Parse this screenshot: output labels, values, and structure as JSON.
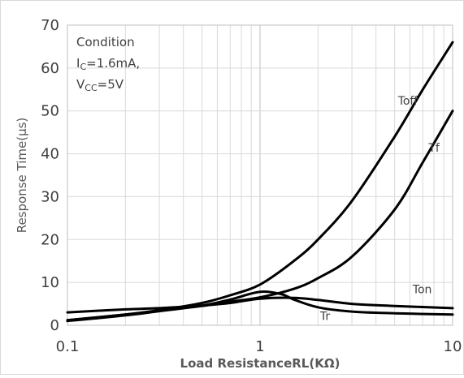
{
  "chart_data": {
    "type": "line",
    "xlabel": "Load ResistanceRL(KΩ)",
    "ylabel": "Response Time(μs)",
    "xscale": "log",
    "xlim": [
      0.1,
      10
    ],
    "ylim": [
      0,
      70
    ],
    "grid": true,
    "x_ticks": [
      "0.1",
      "1",
      "10"
    ],
    "y_ticks": [
      "0",
      "10",
      "20",
      "30",
      "40",
      "50",
      "60",
      "70"
    ],
    "annotation": {
      "title": "Condition",
      "lines": [
        {
          "main": "I",
          "sub": "C",
          "rest": "=1.6mA,"
        },
        {
          "main": "V",
          "sub": "CC",
          "rest": "=5V"
        }
      ]
    },
    "series": [
      {
        "name": "Toff",
        "x": [
          0.1,
          0.2,
          0.3,
          0.5,
          0.7,
          1,
          1.5,
          2,
          3,
          5,
          7,
          10
        ],
        "y": [
          1.2,
          2.5,
          3.5,
          5.2,
          7,
          9.5,
          15,
          20,
          29,
          44,
          55,
          66
        ]
      },
      {
        "name": "Tf",
        "x": [
          0.1,
          0.2,
          0.3,
          0.5,
          0.7,
          1,
          1.5,
          2,
          3,
          5,
          7,
          10
        ],
        "y": [
          1,
          2.3,
          3.3,
          4.5,
          5.5,
          6.5,
          8.5,
          11,
          16,
          27,
          38,
          50
        ]
      },
      {
        "name": "Ton",
        "x": [
          0.1,
          0.2,
          0.3,
          0.5,
          0.7,
          1,
          1.5,
          2,
          3,
          5,
          10
        ],
        "y": [
          3,
          3.7,
          4,
          4.6,
          5.2,
          6.2,
          6.4,
          5.9,
          5,
          4.5,
          4
        ]
      },
      {
        "name": "Tr",
        "x": [
          0.1,
          0.2,
          0.3,
          0.5,
          0.7,
          1,
          1.3,
          1.5,
          2,
          3,
          5,
          10
        ],
        "y": [
          1.2,
          2.5,
          3.5,
          4.6,
          6,
          7.8,
          7.2,
          6,
          4.2,
          3.2,
          2.8,
          2.5
        ]
      }
    ],
    "label_positions": {
      "Toff": [
        5.2,
        51.5
      ],
      "Tf": [
        7.5,
        40.5
      ],
      "Ton": [
        6.2,
        7.5
      ],
      "Tr": [
        2.05,
        1.2
      ]
    }
  }
}
